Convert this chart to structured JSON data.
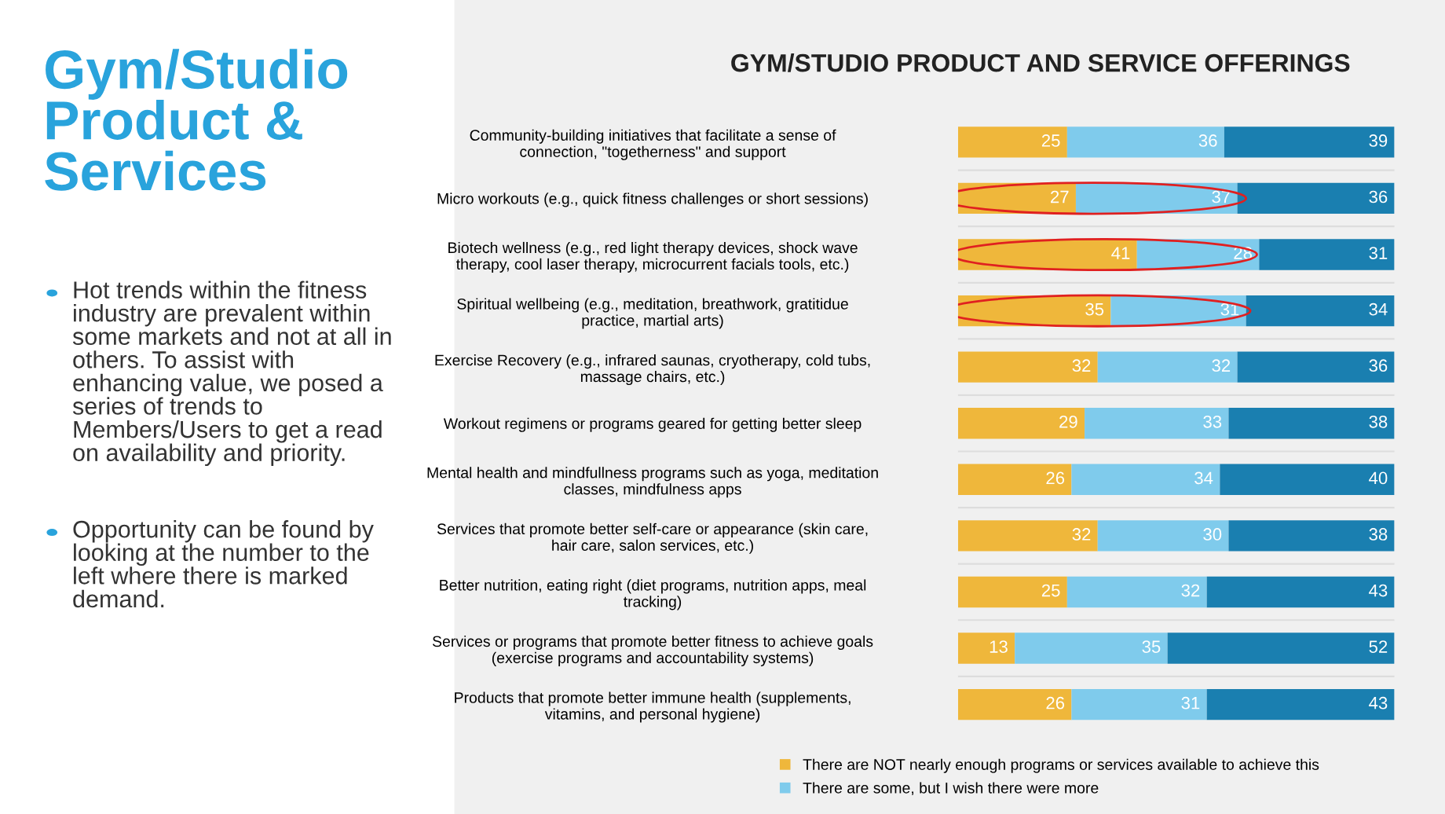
{
  "chart_data": {
    "type": "bar",
    "orientation": "horizontal",
    "stacked": true,
    "data_labels": true,
    "tick_labels": "y",
    "legend": "bottom",
    "grid": false,
    "title": "GYM/STUDIO PRODUCT AND SERVICE OFFERINGS",
    "annotations": [
      "Gym/Studio\nProduct &\nServices",
      "Hot trends within the fitness\nindustry are prevalent within\nsome markets and not at all in\nothers. To assist with\nenhancing value, we posed a\nseries of trends to\nMembers/Users to get a read\non availability and priority.",
      "Opportunity can be found by\nlooking at the number to the\nleft where there is marked\ndemand."
    ],
    "categories": [
      "Community-building initiatives that facilitate a sense of\nconnection, \"togetherness\" and support",
      "Micro workouts (e.g., quick fitness challenges or short sessions)",
      "Biotech wellness (e.g., red light therapy devices, shock wave\ntherapy, cool laser therapy, microcurrent facials tools, etc.)",
      "Spiritual wellbeing (e.g., meditation, breathwork, gratitidue\npractice, martial arts)",
      "Exercise Recovery (e.g., infrared saunas, cryotherapy, cold tubs,\nmassage chairs, etc.)",
      "Workout regimens or programs geared for getting better sleep",
      "Mental health and mindfullness programs such as yoga, meditation\nclasses, mindfulness apps",
      "Services that promote better self-care or appearance (skin care,\nhair care, salon services, etc.)",
      "Better nutrition, eating right (diet programs, nutrition apps, meal\ntracking)",
      "Services or programs that promote better fitness to achieve goals\n(exercise programs and accountability systems)",
      "Products that promote better immune health (supplements,\nvitamins, and personal hygiene)"
    ],
    "series": [
      {
        "name": "There are NOT nearly enough programs or services available to achieve this",
        "color": "#efb73b",
        "values": [
          25,
          27,
          41,
          35,
          32,
          29,
          26,
          32,
          25,
          13,
          26
        ]
      },
      {
        "name": "There are some, but I wish there were more",
        "color": "#7fcbec",
        "values": [
          36,
          37,
          28,
          31,
          32,
          33,
          34,
          30,
          32,
          35,
          31
        ]
      },
      {
        "color": "#1a7fb0",
        "values": [
          39,
          36,
          31,
          34,
          36,
          38,
          40,
          38,
          43,
          52,
          43
        ]
      }
    ]
  }
}
